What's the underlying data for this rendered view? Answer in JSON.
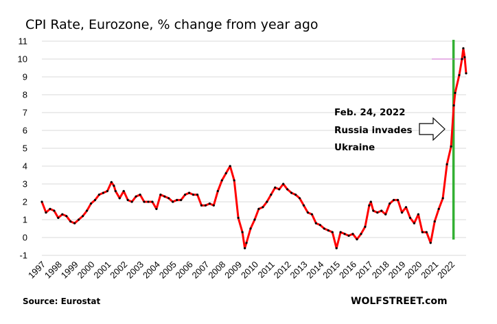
{
  "chart_data": {
    "type": "line",
    "title": "CPI Rate, Eurozone, % change from year ago",
    "xlabel": "",
    "ylabel": "",
    "xlim": [
      1997,
      2023
    ],
    "ylim": [
      -1,
      11
    ],
    "y_ticks": [
      "11",
      "10",
      "9",
      "8",
      "7",
      "6",
      "5",
      "4",
      "3",
      "2",
      "1",
      "0",
      "-1"
    ],
    "x_ticks": [
      "1997",
      "1998",
      "1999",
      "2000",
      "2001",
      "2002",
      "2003",
      "2004",
      "2005",
      "2006",
      "2007",
      "2008",
      "2009",
      "2010",
      "2011",
      "2012",
      "2013",
      "2014",
      "2015",
      "2016",
      "2017",
      "2018",
      "2019",
      "2020",
      "2021",
      "2022"
    ],
    "grid": "horizontal",
    "series": [
      {
        "color": "#ff0000",
        "marker_color": "#000000",
        "x": [
          1997.0,
          1997.25,
          1997.5,
          1997.75,
          1998.0,
          1998.25,
          1998.5,
          1998.75,
          1999.0,
          1999.25,
          1999.5,
          1999.75,
          2000.0,
          2000.25,
          2000.5,
          2000.75,
          2001.0,
          2001.25,
          2001.4,
          2001.5,
          2001.75,
          2002.0,
          2002.25,
          2002.5,
          2002.75,
          2003.0,
          2003.25,
          2003.5,
          2003.75,
          2004.0,
          2004.25,
          2004.5,
          2004.75,
          2005.0,
          2005.25,
          2005.5,
          2005.75,
          2006.0,
          2006.25,
          2006.5,
          2006.75,
          2007.0,
          2007.25,
          2007.5,
          2007.75,
          2008.0,
          2008.25,
          2008.5,
          2008.75,
          2009.0,
          2009.25,
          2009.4,
          2009.5,
          2009.75,
          2010.0,
          2010.25,
          2010.5,
          2010.75,
          2011.0,
          2011.25,
          2011.5,
          2011.75,
          2012.0,
          2012.25,
          2012.5,
          2012.75,
          2013.0,
          2013.25,
          2013.5,
          2013.75,
          2014.0,
          2014.25,
          2014.5,
          2014.75,
          2015.0,
          2015.25,
          2015.5,
          2015.75,
          2016.0,
          2016.25,
          2016.5,
          2016.75,
          2017.0,
          2017.1,
          2017.25,
          2017.5,
          2017.75,
          2018.0,
          2018.25,
          2018.5,
          2018.75,
          2019.0,
          2019.25,
          2019.5,
          2019.75,
          2020.0,
          2020.25,
          2020.5,
          2020.75,
          2021.0,
          2021.25,
          2021.5,
          2021.75,
          2022.0,
          2022.17,
          2022.25,
          2022.5,
          2022.67,
          2022.75,
          2022.83,
          2022.92
        ],
        "values": [
          2.0,
          1.4,
          1.6,
          1.5,
          1.1,
          1.3,
          1.2,
          0.9,
          0.8,
          1.0,
          1.2,
          1.5,
          1.9,
          2.1,
          2.4,
          2.5,
          2.6,
          3.1,
          2.9,
          2.6,
          2.2,
          2.6,
          2.1,
          2.0,
          2.3,
          2.4,
          2.0,
          2.0,
          2.0,
          1.6,
          2.4,
          2.3,
          2.2,
          2.0,
          2.1,
          2.1,
          2.4,
          2.5,
          2.4,
          2.4,
          1.8,
          1.8,
          1.9,
          1.8,
          2.6,
          3.2,
          3.6,
          4.0,
          3.2,
          1.1,
          0.3,
          -0.6,
          -0.3,
          0.5,
          1.0,
          1.6,
          1.7,
          2.0,
          2.4,
          2.8,
          2.7,
          3.0,
          2.7,
          2.5,
          2.4,
          2.2,
          1.8,
          1.4,
          1.3,
          0.8,
          0.7,
          0.5,
          0.4,
          0.3,
          -0.6,
          0.3,
          0.2,
          0.1,
          0.2,
          -0.1,
          0.2,
          0.6,
          1.8,
          2.0,
          1.5,
          1.4,
          1.5,
          1.3,
          1.9,
          2.1,
          2.1,
          1.4,
          1.7,
          1.1,
          0.8,
          1.3,
          0.3,
          0.3,
          -0.3,
          0.9,
          1.6,
          2.2,
          4.1,
          5.1,
          7.4,
          8.1,
          9.1,
          10.0,
          10.6,
          10.1,
          9.2
        ]
      }
    ],
    "annotations": {
      "event_lines": [
        "Feb. 24, 2022",
        "Russia invades",
        "Ukraine"
      ],
      "event_x": 2022.15,
      "event_line_color": "#33b033",
      "reference_value": 10,
      "reference_line_color": "#cc66cc"
    }
  },
  "footer": {
    "source": "Source: Eurostat",
    "brand": "WOLFSTREET.com"
  }
}
